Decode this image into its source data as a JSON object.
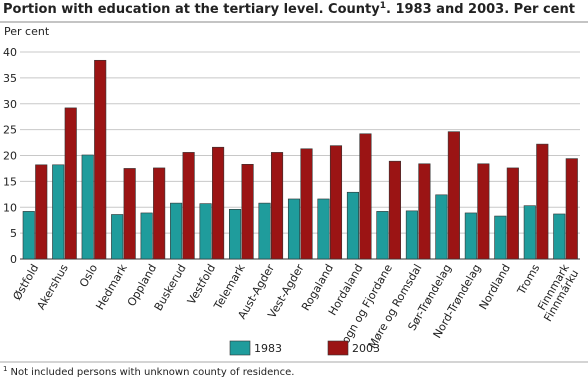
{
  "chart_data": {
    "type": "bar",
    "title": "Portion with education at the tertiary level. County",
    "title_note_mark": "1",
    "title_rest": ". 1983 and 2003. Per cent",
    "y_label": "Per cent",
    "categories": [
      "Østfold",
      "Akershus",
      "Oslo",
      "Hedmark",
      "Oppland",
      "Buskerud",
      "Vestfold",
      "Telemark",
      "Aust-Agder",
      "Vest-Agder",
      "Rogaland",
      "Hordaland",
      "Sogn og Fjordane",
      "Møre og Romsdal",
      "Sør-Trøndelag",
      "Nord-Trøndelag",
      "Nordland",
      "Troms",
      "Finnmark\nFinnmárku"
    ],
    "series": [
      {
        "name": "1983",
        "color": "#1f9c9c",
        "values": [
          9.2,
          18.2,
          20.1,
          8.6,
          8.9,
          10.8,
          10.7,
          9.6,
          10.8,
          11.6,
          11.6,
          12.9,
          9.2,
          9.3,
          12.4,
          8.9,
          8.3,
          10.3,
          8.7
        ]
      },
      {
        "name": "2003",
        "color": "#9b1414",
        "values": [
          18.2,
          29.2,
          38.4,
          17.5,
          17.6,
          20.6,
          21.6,
          18.3,
          20.6,
          21.3,
          21.9,
          24.2,
          18.9,
          18.4,
          24.6,
          18.4,
          17.6,
          22.2,
          19.4
        ]
      }
    ],
    "ylim": [
      0,
      40
    ],
    "yticks": [
      0,
      5,
      10,
      15,
      20,
      25,
      30,
      35,
      40
    ],
    "grid": true,
    "footnote_mark": "1",
    "footnote": "Not included persons with unknown county of residence."
  }
}
